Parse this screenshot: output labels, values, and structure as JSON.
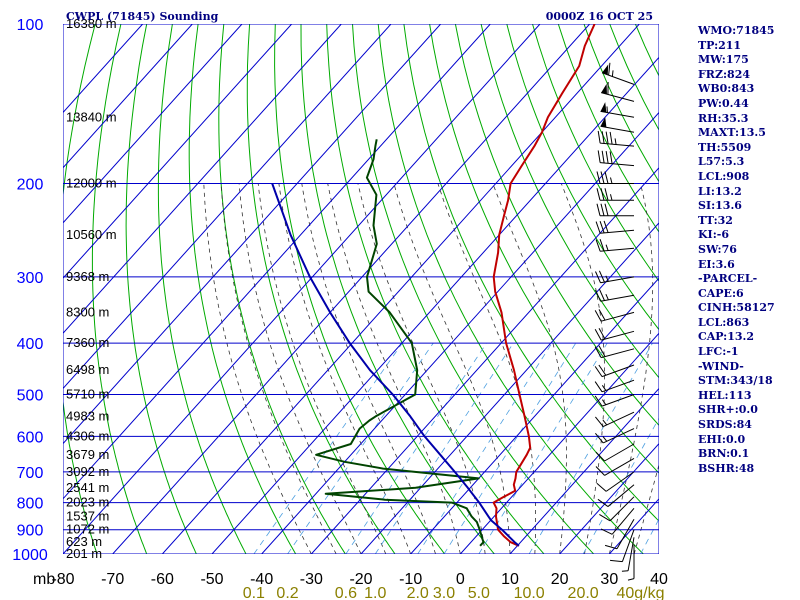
{
  "title": "CWPL (71845) Sounding",
  "datetime": "0000Z 16 OCT 25",
  "colors": {
    "grid": "#0000cc",
    "dry_adiabat": "#00aa00",
    "moist_adiabat": "#333333",
    "mixing_ratio": "#4fa0e0",
    "temperature": "#c00000",
    "dewpoint": "#004400",
    "parcel": "#0000aa",
    "labels": "#000080"
  },
  "stats": [
    "WMO:71845",
    "TP:211",
    "MW:175",
    "FRZ:824",
    "WB0:843",
    "PW:0.44",
    "RH:35.3",
    "MAXT:13.5",
    "TH:5509",
    "L57:5.3",
    "LCL:908",
    "LI:13.2",
    "SI:13.6",
    "TT:32",
    "KI:-6",
    "SW:76",
    "EI:3.6",
    "-PARCEL-",
    "CAPE:6",
    "CINH:58127",
    "LCL:863",
    "CAP:13.2",
    "LFC:-1",
    "-WIND-",
    "STM:343/18",
    "HEL:113",
    "SHR+:0.0",
    "SRDS:84",
    "EHI:0.0",
    "BRN:0.1",
    "BSHR:48"
  ],
  "chart_data": {
    "type": "line",
    "diagram": "skew-t log-p",
    "x_unit_label": "mb",
    "mixing_ratio_unit": "g/kg",
    "temperature_ticks": [
      -80,
      -70,
      -60,
      -50,
      -40,
      -30,
      -20,
      -10,
      0,
      10,
      20,
      30,
      40
    ],
    "pressure_levels": [
      100,
      200,
      300,
      400,
      500,
      600,
      700,
      800,
      900,
      1000
    ],
    "pressure_range": [
      100,
      1000
    ],
    "temperature_range_at_surface": [
      -80,
      40
    ],
    "heights": [
      {
        "p": 100,
        "label": "16380 m"
      },
      {
        "p": 150,
        "label": "13840 m"
      },
      {
        "p": 200,
        "label": "12000 m"
      },
      {
        "p": 250,
        "label": "10560 m"
      },
      {
        "p": 300,
        "label": "9368 m"
      },
      {
        "p": 350,
        "label": "8300 m"
      },
      {
        "p": 400,
        "label": "7360 m"
      },
      {
        "p": 450,
        "label": "6498 m"
      },
      {
        "p": 500,
        "label": "5710 m"
      },
      {
        "p": 550,
        "label": "4983 m"
      },
      {
        "p": 600,
        "label": "4306 m"
      },
      {
        "p": 650,
        "label": "3679 m"
      },
      {
        "p": 700,
        "label": "3092 m"
      },
      {
        "p": 750,
        "label": "2541 m"
      },
      {
        "p": 800,
        "label": "2023 m"
      },
      {
        "p": 850,
        "label": "1537 m"
      },
      {
        "p": 900,
        "label": "1072 m"
      },
      {
        "p": 950,
        "label": "623 m"
      },
      {
        "p": 1000,
        "label": "201 m"
      }
    ],
    "mixing_ratio_labels": [
      "0.1",
      "0.2",
      "0.6",
      "1.0",
      "2.0",
      "3.0",
      "5.0",
      "10.0",
      "20.0",
      "40g/kg"
    ],
    "series": [
      {
        "key": "temperature",
        "points": [
          [
            965,
            10.3
          ],
          [
            950,
            8.0
          ],
          [
            925,
            5.5
          ],
          [
            900,
            3.2
          ],
          [
            850,
            0.4
          ],
          [
            820,
            -1.0
          ],
          [
            800,
            -2.6
          ],
          [
            780,
            -1.6
          ],
          [
            760,
            -0.4
          ],
          [
            740,
            -1.8
          ],
          [
            720,
            -2.6
          ],
          [
            700,
            -3.6
          ],
          [
            680,
            -4.0
          ],
          [
            650,
            -4.6
          ],
          [
            630,
            -5.2
          ],
          [
            600,
            -7.5
          ],
          [
            550,
            -12.0
          ],
          [
            500,
            -17.0
          ],
          [
            450,
            -22.5
          ],
          [
            400,
            -29.0
          ],
          [
            350,
            -35.5
          ],
          [
            320,
            -40.5
          ],
          [
            300,
            -43.5
          ],
          [
            270,
            -47.0
          ],
          [
            250,
            -50.0
          ],
          [
            230,
            -52.5
          ],
          [
            215,
            -54.5
          ],
          [
            200,
            -57.0
          ],
          [
            185,
            -58.0
          ],
          [
            170,
            -59.0
          ],
          [
            160,
            -60.0
          ],
          [
            150,
            -61.5
          ],
          [
            135,
            -63.0
          ],
          [
            120,
            -64.5
          ],
          [
            110,
            -67.0
          ],
          [
            100,
            -69.0
          ]
        ]
      },
      {
        "key": "dewpoint",
        "points": [
          [
            965,
            2.5
          ],
          [
            950,
            2.5
          ],
          [
            900,
            -0.5
          ],
          [
            870,
            -2.5
          ],
          [
            850,
            -4.5
          ],
          [
            820,
            -7.0
          ],
          [
            800,
            -11.0
          ],
          [
            790,
            -25.0
          ],
          [
            770,
            -38.0
          ],
          [
            750,
            -21.0
          ],
          [
            720,
            -10.0
          ],
          [
            690,
            -31.0
          ],
          [
            670,
            -40.0
          ],
          [
            650,
            -47.0
          ],
          [
            620,
            -42.0
          ],
          [
            580,
            -43.0
          ],
          [
            560,
            -42.5
          ],
          [
            550,
            -42.0
          ],
          [
            500,
            -38.0
          ],
          [
            450,
            -42.0
          ],
          [
            400,
            -48.0
          ],
          [
            350,
            -58.0
          ],
          [
            320,
            -66.0
          ],
          [
            300,
            -69.0
          ],
          [
            260,
            -73.0
          ],
          [
            240,
            -77.0
          ],
          [
            210,
            -82.0
          ],
          [
            195,
            -87.0
          ],
          [
            180,
            -89.0
          ],
          [
            170,
            -91.0
          ],
          [
            165,
            -92.0
          ]
        ]
      },
      {
        "key": "parcel",
        "points": [
          [
            965,
            10.3
          ],
          [
            950,
            8.8
          ],
          [
            900,
            4.0
          ],
          [
            863,
            0.0
          ],
          [
            850,
            -1.1
          ],
          [
            800,
            -5.5
          ],
          [
            750,
            -10.5
          ],
          [
            700,
            -16.0
          ],
          [
            650,
            -22.0
          ],
          [
            600,
            -28.5
          ],
          [
            550,
            -35.0
          ],
          [
            500,
            -42.5
          ],
          [
            450,
            -51.5
          ],
          [
            400,
            -60.5
          ],
          [
            350,
            -70.0
          ],
          [
            300,
            -80.5
          ],
          [
            250,
            -92.0
          ],
          [
            200,
            -105.0
          ]
        ]
      }
    ],
    "wind_barbs": [
      {
        "p": 130,
        "dir": 290,
        "spd": 65
      },
      {
        "p": 140,
        "dir": 285,
        "spd": 60
      },
      {
        "p": 150,
        "dir": 280,
        "spd": 55
      },
      {
        "p": 160,
        "dir": 280,
        "spd": 50
      },
      {
        "p": 170,
        "dir": 275,
        "spd": 45
      },
      {
        "p": 185,
        "dir": 275,
        "spd": 40
      },
      {
        "p": 200,
        "dir": 270,
        "spd": 35
      },
      {
        "p": 215,
        "dir": 270,
        "spd": 35
      },
      {
        "p": 230,
        "dir": 270,
        "spd": 30
      },
      {
        "p": 245,
        "dir": 265,
        "spd": 30
      },
      {
        "p": 265,
        "dir": 265,
        "spd": 25
      },
      {
        "p": 300,
        "dir": 260,
        "spd": 25
      },
      {
        "p": 325,
        "dir": 260,
        "spd": 25
      },
      {
        "p": 350,
        "dir": 255,
        "spd": 20
      },
      {
        "p": 380,
        "dir": 255,
        "spd": 20
      },
      {
        "p": 410,
        "dir": 255,
        "spd": 20
      },
      {
        "p": 440,
        "dir": 250,
        "spd": 20
      },
      {
        "p": 470,
        "dir": 250,
        "spd": 15
      },
      {
        "p": 500,
        "dir": 250,
        "spd": 15
      },
      {
        "p": 540,
        "dir": 245,
        "spd": 15
      },
      {
        "p": 580,
        "dir": 245,
        "spd": 15
      },
      {
        "p": 620,
        "dir": 240,
        "spd": 10
      },
      {
        "p": 660,
        "dir": 240,
        "spd": 10
      },
      {
        "p": 700,
        "dir": 235,
        "spd": 10
      },
      {
        "p": 740,
        "dir": 230,
        "spd": 10
      },
      {
        "p": 780,
        "dir": 225,
        "spd": 10
      },
      {
        "p": 820,
        "dir": 220,
        "spd": 10
      },
      {
        "p": 860,
        "dir": 210,
        "spd": 10
      },
      {
        "p": 900,
        "dir": 200,
        "spd": 10
      },
      {
        "p": 930,
        "dir": 190,
        "spd": 5
      },
      {
        "p": 960,
        "dir": 180,
        "spd": 5
      }
    ]
  }
}
